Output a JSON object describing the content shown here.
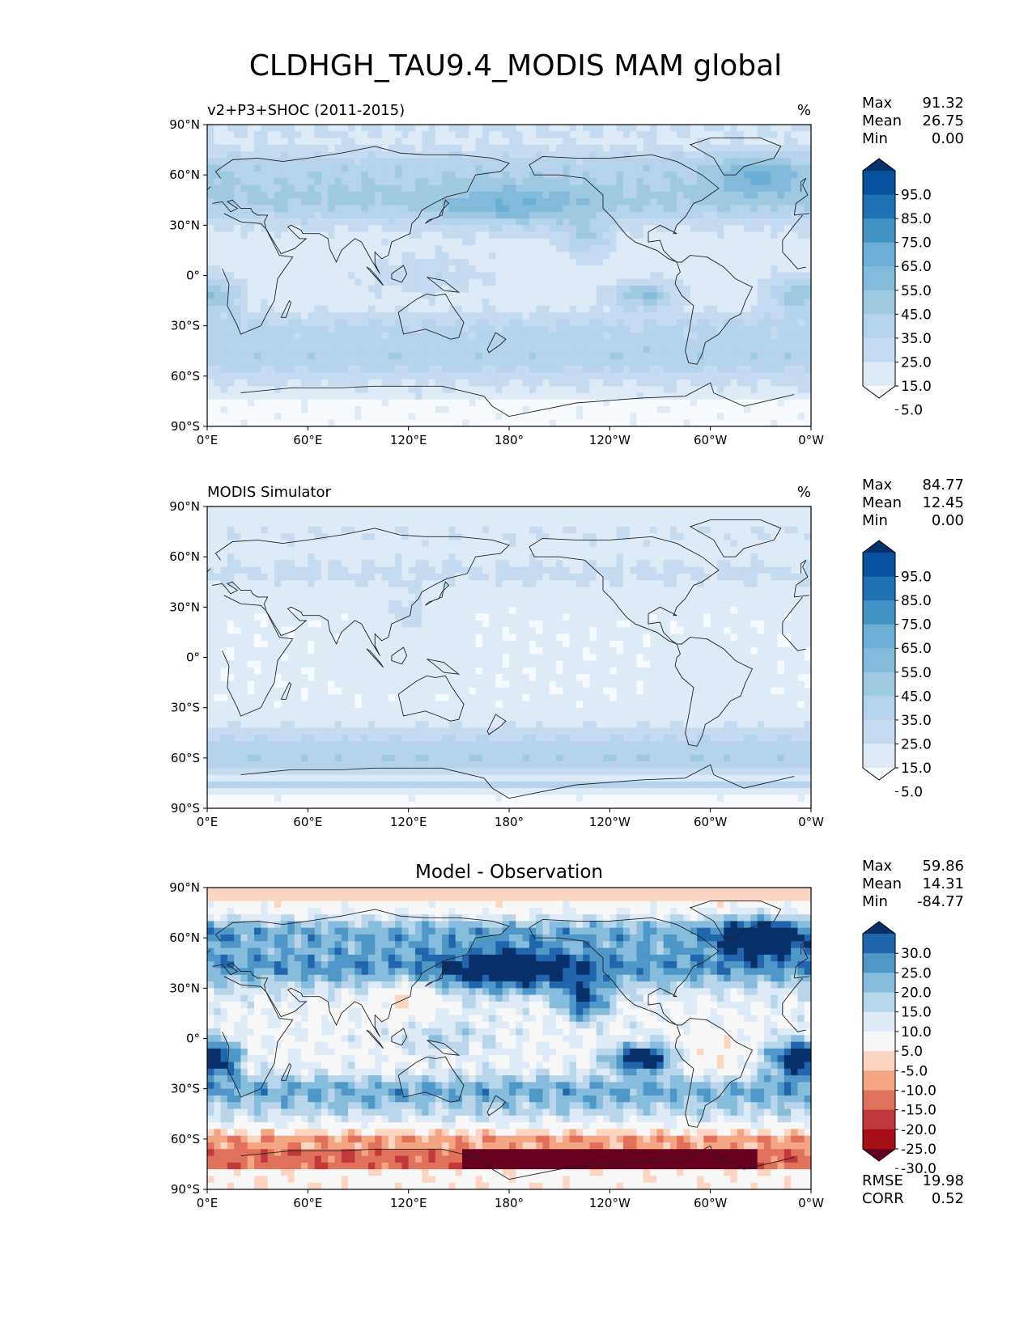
{
  "figure_title": "CLDHGH_TAU9.4_MODIS MAM global",
  "colors": {
    "blues": [
      "#f7fbff",
      "#deebf7",
      "#c6dbef",
      "#b5d3ea",
      "#9ecae1",
      "#82badb",
      "#6baed6",
      "#4292c6",
      "#2171b5",
      "#08519c",
      "#08306b"
    ],
    "diverging": [
      "#67001f",
      "#a50f15",
      "#c1393a",
      "#e0715a",
      "#f4a582",
      "#fbd5c2",
      "#f7f7f7",
      "#deebf7",
      "#b8d5e9",
      "#86bcdc",
      "#4f97c8",
      "#2166ac",
      "#08306b"
    ],
    "land_outline": "#222222"
  },
  "chart_data": [
    {
      "type": "heatmap",
      "id": "model",
      "title_left": "v2+P3+SHOC (2011-2015)",
      "title_center": "",
      "units": "%",
      "x_tick_labels": [
        "0°E",
        "60°E",
        "120°E",
        "180°",
        "120°W",
        "60°W",
        "0°W"
      ],
      "y_tick_labels": [
        "90°N",
        "60°N",
        "30°N",
        "0°",
        "30°S",
        "60°S",
        "90°S"
      ],
      "xlim": [
        0,
        360
      ],
      "ylim": [
        -90,
        90
      ],
      "stats": [
        {
          "label": "Max",
          "value": "91.32"
        },
        {
          "label": "Mean",
          "value": "26.75"
        },
        {
          "label": "Min",
          "value": "0.00"
        }
      ],
      "colorbar": {
        "palette": "blues",
        "labels": [
          "95.0",
          "85.0",
          "75.0",
          "65.0",
          "55.0",
          "45.0",
          "35.0",
          "25.0",
          "15.0",
          "5.0"
        ]
      },
      "field": "model"
    },
    {
      "type": "heatmap",
      "id": "obs",
      "title_left": "MODIS Simulator",
      "title_center": "",
      "units": "%",
      "x_tick_labels": [
        "0°E",
        "60°E",
        "120°E",
        "180°",
        "120°W",
        "60°W",
        "0°W"
      ],
      "y_tick_labels": [
        "90°N",
        "60°N",
        "30°N",
        "0°",
        "30°S",
        "60°S",
        "90°S"
      ],
      "xlim": [
        0,
        360
      ],
      "ylim": [
        -90,
        90
      ],
      "stats": [
        {
          "label": "Max",
          "value": "84.77"
        },
        {
          "label": "Mean",
          "value": "12.45"
        },
        {
          "label": "Min",
          "value": "0.00"
        }
      ],
      "colorbar": {
        "palette": "blues",
        "labels": [
          "95.0",
          "85.0",
          "75.0",
          "65.0",
          "55.0",
          "45.0",
          "35.0",
          "25.0",
          "15.0",
          "5.0"
        ]
      },
      "field": "obs"
    },
    {
      "type": "heatmap",
      "id": "diff",
      "title_left": "",
      "title_center": "Model - Observation",
      "units": "",
      "x_tick_labels": [
        "0°E",
        "60°E",
        "120°E",
        "180°",
        "120°W",
        "60°W",
        "0°W"
      ],
      "y_tick_labels": [
        "90°N",
        "60°N",
        "30°N",
        "0°",
        "30°S",
        "60°S",
        "90°S"
      ],
      "xlim": [
        0,
        360
      ],
      "ylim": [
        -90,
        90
      ],
      "stats": [
        {
          "label": "Max",
          "value": "59.86"
        },
        {
          "label": "Mean",
          "value": "14.31"
        },
        {
          "label": "Min",
          "value": "-84.77"
        }
      ],
      "colorbar": {
        "palette": "diverging",
        "labels": [
          "30.0",
          "25.0",
          "20.0",
          "15.0",
          "10.0",
          "5.0",
          "-5.0",
          "-10.0",
          "-15.0",
          "-20.0",
          "-25.0",
          "-30.0"
        ]
      },
      "metrics": [
        {
          "label": "RMSE",
          "value": "19.98"
        },
        {
          "label": "CORR",
          "value": "0.52"
        }
      ],
      "field": "diff"
    }
  ]
}
